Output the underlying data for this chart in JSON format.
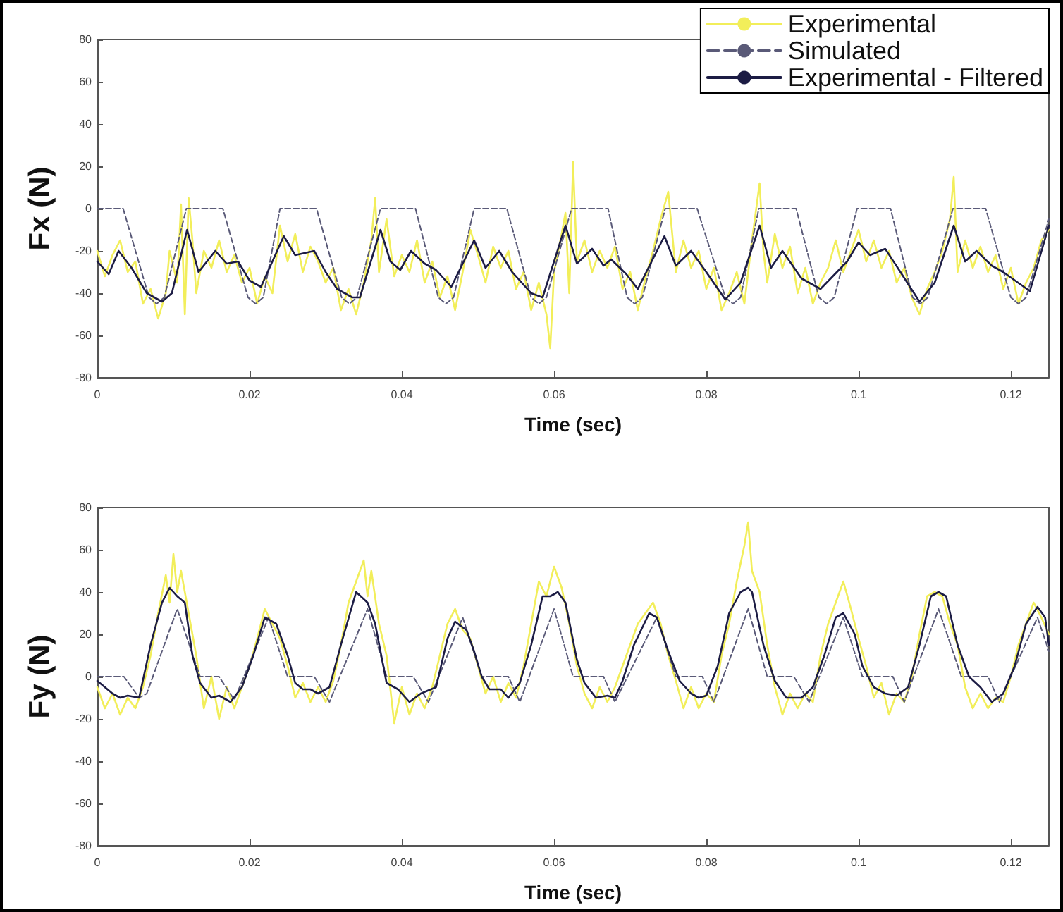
{
  "chart_data": [
    {
      "type": "line",
      "xlabel": "Time (sec)",
      "ylabel": "Fx (N)",
      "xlim": [
        0,
        0.125
      ],
      "xticks": [
        0,
        0.02,
        0.04,
        0.06,
        0.08,
        0.1,
        0.12
      ],
      "ylim": [
        -80,
        80
      ],
      "yticks": [
        -80,
        -60,
        -40,
        -20,
        0,
        20,
        40,
        60,
        80
      ],
      "grid": false,
      "legend": "top right",
      "marker": "none",
      "series": [
        {
          "name": "Experimental",
          "color": "#f2ee5a",
          "line_style": "solid",
          "x": [
            0,
            0.001,
            0.002,
            0.003,
            0.004,
            0.005,
            0.006,
            0.007,
            0.008,
            0.009,
            0.0095,
            0.0105,
            0.011,
            0.0115,
            0.012,
            0.0125,
            0.013,
            0.014,
            0.015,
            0.016,
            0.017,
            0.018,
            0.019,
            0.02,
            0.021,
            0.022,
            0.023,
            0.024,
            0.025,
            0.026,
            0.027,
            0.028,
            0.029,
            0.03,
            0.031,
            0.032,
            0.033,
            0.034,
            0.035,
            0.036,
            0.0365,
            0.037,
            0.038,
            0.039,
            0.04,
            0.041,
            0.042,
            0.043,
            0.044,
            0.045,
            0.046,
            0.047,
            0.048,
            0.049,
            0.05,
            0.051,
            0.052,
            0.053,
            0.054,
            0.055,
            0.056,
            0.057,
            0.058,
            0.059,
            0.0595,
            0.06,
            0.061,
            0.0615,
            0.062,
            0.0625,
            0.063,
            0.064,
            0.065,
            0.066,
            0.067,
            0.068,
            0.069,
            0.07,
            0.071,
            0.072,
            0.073,
            0.074,
            0.075,
            0.076,
            0.077,
            0.078,
            0.079,
            0.08,
            0.081,
            0.082,
            0.083,
            0.084,
            0.085,
            0.086,
            0.087,
            0.0875,
            0.088,
            0.089,
            0.09,
            0.091,
            0.092,
            0.093,
            0.094,
            0.095,
            0.096,
            0.097,
            0.098,
            0.099,
            0.1,
            0.101,
            0.102,
            0.103,
            0.104,
            0.105,
            0.106,
            0.107,
            0.108,
            0.109,
            0.11,
            0.111,
            0.112,
            0.1125,
            0.113,
            0.114,
            0.115,
            0.116,
            0.117,
            0.118,
            0.119,
            0.12,
            0.121,
            0.122,
            0.123,
            0.124,
            0.125
          ],
          "values": [
            -20,
            -32,
            -22,
            -15,
            -30,
            -25,
            -45,
            -38,
            -52,
            -40,
            -20,
            -35,
            2,
            -50,
            5,
            -15,
            -40,
            -20,
            -28,
            -15,
            -30,
            -22,
            -35,
            -28,
            -45,
            -32,
            -40,
            -8,
            -25,
            -12,
            -30,
            -18,
            -25,
            -35,
            -28,
            -48,
            -38,
            -50,
            -35,
            -15,
            5,
            -30,
            -5,
            -32,
            -22,
            -30,
            -15,
            -35,
            -25,
            -42,
            -32,
            -48,
            -30,
            -10,
            -22,
            -35,
            -18,
            -28,
            -20,
            -38,
            -30,
            -48,
            -35,
            -50,
            -66,
            -30,
            -12,
            -2,
            -40,
            22,
            -25,
            -15,
            -30,
            -20,
            -28,
            -18,
            -38,
            -30,
            -48,
            -33,
            -20,
            -5,
            8,
            -30,
            -15,
            -28,
            -20,
            -38,
            -28,
            -48,
            -40,
            -30,
            -45,
            -15,
            12,
            -20,
            -35,
            -12,
            -28,
            -18,
            -40,
            -28,
            -45,
            -35,
            -28,
            -15,
            -30,
            -20,
            -10,
            -25,
            -15,
            -28,
            -20,
            -35,
            -28,
            -42,
            -50,
            -38,
            -30,
            -20,
            -5,
            15,
            -30,
            -15,
            -28,
            -18,
            -30,
            -22,
            -38,
            -28,
            -45,
            -35,
            -28,
            -15,
            -10
          ]
        },
        {
          "name": "Simulated",
          "color": "#5a5a78",
          "line_style": "dashed",
          "x": [
            0,
            0.0034,
            0.0068,
            0.0078,
            0.0088,
            0.0117,
            0.0165,
            0.0198,
            0.0208,
            0.0218,
            0.024,
            0.0288,
            0.0321,
            0.0331,
            0.0341,
            0.0372,
            0.0418,
            0.0448,
            0.0458,
            0.0468,
            0.0495,
            0.0538,
            0.057,
            0.058,
            0.059,
            0.0623,
            0.0671,
            0.0696,
            0.0706,
            0.0716,
            0.0746,
            0.0788,
            0.0825,
            0.0835,
            0.0845,
            0.0869,
            0.0918,
            0.0948,
            0.0958,
            0.0968,
            0.0998,
            0.1042,
            0.1071,
            0.1081,
            0.1091,
            0.1124,
            0.1167,
            0.12,
            0.121,
            0.122,
            0.125
          ],
          "values": [
            0,
            0,
            -42,
            -45,
            -42,
            0,
            0,
            -42,
            -45,
            -42,
            0,
            0,
            -42,
            -45,
            -42,
            0,
            0,
            -42,
            -45,
            -42,
            0,
            0,
            -42,
            -45,
            -42,
            0,
            0,
            -42,
            -45,
            -42,
            0,
            0,
            -42,
            -45,
            -42,
            0,
            0,
            -42,
            -45,
            -42,
            0,
            0,
            -42,
            -45,
            -42,
            0,
            0,
            -42,
            -45,
            -42,
            -5
          ]
        },
        {
          "name": "Experimental - Filtered",
          "color": "#1c1c44",
          "line_style": "solid",
          "x": [
            0,
            0.0015,
            0.0028,
            0.0045,
            0.0065,
            0.0085,
            0.0098,
            0.0118,
            0.0133,
            0.0155,
            0.017,
            0.0185,
            0.02,
            0.0215,
            0.0245,
            0.026,
            0.0285,
            0.03,
            0.0315,
            0.0335,
            0.0345,
            0.0372,
            0.0385,
            0.0398,
            0.0412,
            0.043,
            0.0445,
            0.0465,
            0.0495,
            0.051,
            0.0528,
            0.0545,
            0.057,
            0.0585,
            0.0615,
            0.063,
            0.065,
            0.0665,
            0.0675,
            0.0695,
            0.071,
            0.0745,
            0.076,
            0.078,
            0.08,
            0.0825,
            0.0845,
            0.087,
            0.0885,
            0.09,
            0.0925,
            0.095,
            0.0985,
            0.1,
            0.1015,
            0.1035,
            0.1055,
            0.108,
            0.11,
            0.1125,
            0.114,
            0.1155,
            0.1175,
            0.119,
            0.1225,
            0.125
          ],
          "values": [
            -25,
            -31,
            -20,
            -28,
            -40,
            -44,
            -40,
            -10,
            -30,
            -20,
            -26,
            -25,
            -34,
            -37,
            -13,
            -22,
            -20,
            -30,
            -38,
            -42,
            -42,
            -10,
            -25,
            -29,
            -20,
            -26,
            -29,
            -37,
            -15,
            -28,
            -20,
            -30,
            -40,
            -42,
            -8,
            -26,
            -19,
            -27,
            -24,
            -31,
            -38,
            -13,
            -27,
            -20,
            -30,
            -43,
            -35,
            -8,
            -28,
            -20,
            -33,
            -38,
            -25,
            -16,
            -22,
            -19,
            -30,
            -44,
            -35,
            -8,
            -25,
            -20,
            -27,
            -30,
            -39,
            -8
          ]
        }
      ]
    },
    {
      "type": "line",
      "xlabel": "Time (sec)",
      "ylabel": "Fy (N)",
      "xlim": [
        0,
        0.125
      ],
      "xticks": [
        0,
        0.02,
        0.04,
        0.06,
        0.08,
        0.1,
        0.12
      ],
      "ylim": [
        -80,
        80
      ],
      "yticks": [
        -80,
        -60,
        -40,
        -20,
        0,
        20,
        40,
        60,
        80
      ],
      "grid": false,
      "marker": "none",
      "series": [
        {
          "color": "#f2ee5a",
          "line_style": "solid",
          "x": [
            0,
            0.001,
            0.002,
            0.003,
            0.004,
            0.005,
            0.006,
            0.007,
            0.008,
            0.009,
            0.0095,
            0.01,
            0.0105,
            0.011,
            0.012,
            0.013,
            0.014,
            0.015,
            0.016,
            0.017,
            0.018,
            0.019,
            0.02,
            0.021,
            0.022,
            0.023,
            0.024,
            0.025,
            0.026,
            0.027,
            0.028,
            0.029,
            0.03,
            0.031,
            0.032,
            0.033,
            0.034,
            0.035,
            0.0355,
            0.036,
            0.037,
            0.038,
            0.039,
            0.04,
            0.041,
            0.042,
            0.043,
            0.044,
            0.045,
            0.046,
            0.047,
            0.048,
            0.049,
            0.05,
            0.051,
            0.052,
            0.053,
            0.054,
            0.055,
            0.056,
            0.057,
            0.058,
            0.059,
            0.06,
            0.061,
            0.062,
            0.063,
            0.064,
            0.065,
            0.066,
            0.067,
            0.068,
            0.069,
            0.07,
            0.071,
            0.072,
            0.073,
            0.074,
            0.075,
            0.076,
            0.077,
            0.078,
            0.079,
            0.08,
            0.081,
            0.082,
            0.083,
            0.084,
            0.085,
            0.0855,
            0.086,
            0.087,
            0.088,
            0.089,
            0.09,
            0.091,
            0.092,
            0.093,
            0.094,
            0.095,
            0.096,
            0.097,
            0.098,
            0.099,
            0.1,
            0.101,
            0.102,
            0.103,
            0.104,
            0.105,
            0.106,
            0.107,
            0.108,
            0.109,
            0.11,
            0.111,
            0.112,
            0.113,
            0.114,
            0.115,
            0.116,
            0.117,
            0.118,
            0.119,
            0.12,
            0.121,
            0.122,
            0.123,
            0.124,
            0.125
          ],
          "values": [
            -5,
            -15,
            -8,
            -18,
            -10,
            -15,
            -5,
            10,
            30,
            48,
            35,
            58,
            40,
            50,
            30,
            10,
            -15,
            0,
            -20,
            -5,
            -15,
            -5,
            5,
            18,
            32,
            25,
            18,
            5,
            -10,
            -3,
            -12,
            -5,
            -12,
            -2,
            15,
            35,
            45,
            55,
            38,
            50,
            25,
            10,
            -22,
            -5,
            -18,
            -8,
            -15,
            -5,
            10,
            25,
            32,
            22,
            18,
            5,
            -8,
            0,
            -12,
            -3,
            -10,
            5,
            25,
            45,
            38,
            52,
            42,
            25,
            5,
            -8,
            -15,
            -5,
            -12,
            -5,
            5,
            15,
            25,
            30,
            35,
            25,
            10,
            -2,
            -15,
            -5,
            -15,
            -8,
            -12,
            10,
            25,
            45,
            62,
            73,
            50,
            40,
            15,
            -5,
            -18,
            -8,
            -15,
            -8,
            -12,
            10,
            25,
            35,
            45,
            32,
            18,
            5,
            -10,
            -3,
            -18,
            -8,
            -12,
            0,
            20,
            38,
            40,
            38,
            25,
            15,
            -5,
            -15,
            -8,
            -15,
            -10,
            -12,
            0,
            15,
            25,
            35,
            28,
            20
          ]
        },
        {
          "color": "#5a5a78",
          "line_style": "dashed",
          "x": [
            0,
            0.0035,
            0.0055,
            0.0065,
            0.0105,
            0.0135,
            0.016,
            0.018,
            0.0225,
            0.025,
            0.0285,
            0.0305,
            0.0355,
            0.038,
            0.0415,
            0.0435,
            0.048,
            0.0505,
            0.054,
            0.0555,
            0.06,
            0.0625,
            0.0665,
            0.068,
            0.0735,
            0.076,
            0.0795,
            0.081,
            0.0855,
            0.088,
            0.0915,
            0.0935,
            0.098,
            0.1005,
            0.1045,
            0.106,
            0.1105,
            0.1135,
            0.117,
            0.1185,
            0.1235,
            0.125
          ],
          "values": [
            0,
            0,
            -10,
            -8,
            32,
            0,
            0,
            -11,
            28,
            0,
            0,
            -12,
            32,
            0,
            0,
            -12,
            28,
            0,
            0,
            -12,
            32,
            0,
            0,
            -12,
            28,
            0,
            0,
            -12,
            32,
            0,
            0,
            -12,
            28,
            0,
            0,
            -12,
            32,
            0,
            0,
            -12,
            28,
            12
          ]
        },
        {
          "color": "#1c1c44",
          "line_style": "solid",
          "x": [
            0,
            0.002,
            0.003,
            0.004,
            0.0055,
            0.007,
            0.0085,
            0.0095,
            0.0105,
            0.0115,
            0.0125,
            0.0135,
            0.015,
            0.016,
            0.0175,
            0.019,
            0.0205,
            0.022,
            0.0235,
            0.025,
            0.026,
            0.027,
            0.028,
            0.029,
            0.0305,
            0.032,
            0.034,
            0.0355,
            0.0365,
            0.038,
            0.0395,
            0.041,
            0.0425,
            0.0445,
            0.046,
            0.047,
            0.0485,
            0.0495,
            0.0505,
            0.0515,
            0.053,
            0.054,
            0.0555,
            0.057,
            0.0585,
            0.0595,
            0.0605,
            0.0615,
            0.063,
            0.064,
            0.0655,
            0.067,
            0.068,
            0.069,
            0.0705,
            0.0725,
            0.0735,
            0.075,
            0.0765,
            0.078,
            0.079,
            0.08,
            0.0815,
            0.083,
            0.0845,
            0.0855,
            0.086,
            0.0875,
            0.089,
            0.0905,
            0.0925,
            0.094,
            0.0955,
            0.097,
            0.098,
            0.0995,
            0.1005,
            0.102,
            0.1035,
            0.105,
            0.1065,
            0.108,
            0.1095,
            0.1105,
            0.1115,
            0.113,
            0.1145,
            0.116,
            0.1175,
            0.119,
            0.1205,
            0.122,
            0.1235,
            0.1245,
            0.125
          ],
          "values": [
            -2,
            -8,
            -10,
            -9,
            -10,
            15,
            35,
            42,
            38,
            35,
            10,
            -3,
            -10,
            -9,
            -12,
            -5,
            10,
            28,
            25,
            10,
            -3,
            -6,
            -6,
            -8,
            -5,
            15,
            40,
            35,
            25,
            -3,
            -6,
            -12,
            -8,
            -5,
            18,
            26,
            22,
            12,
            0,
            -6,
            -6,
            -10,
            -3,
            15,
            38,
            38,
            40,
            35,
            8,
            -3,
            -10,
            -9,
            -10,
            -2,
            15,
            30,
            28,
            12,
            -2,
            -8,
            -10,
            -9,
            5,
            30,
            40,
            42,
            40,
            15,
            -2,
            -10,
            -10,
            -5,
            10,
            28,
            30,
            20,
            5,
            -5,
            -8,
            -9,
            -5,
            15,
            38,
            40,
            38,
            15,
            0,
            -5,
            -12,
            -8,
            5,
            25,
            33,
            28,
            15
          ]
        }
      ]
    }
  ]
}
